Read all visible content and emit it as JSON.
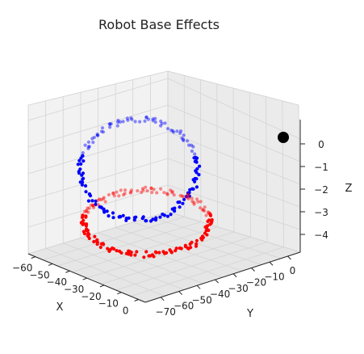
{
  "chart_data": {
    "type": "scatter",
    "projection": "3d",
    "title": "Robot Base Effects",
    "xlabel": "X",
    "ylabel": "Y",
    "zlabel": "Z",
    "xlim": [
      -65,
      5
    ],
    "ylim": [
      -80,
      5
    ],
    "zlim": [
      -4.8,
      0.6
    ],
    "x_ticks": [
      "−60",
      "−50",
      "−40",
      "−30",
      "−20",
      "−10",
      "0"
    ],
    "y_ticks": [
      "−70",
      "−60",
      "−50",
      "−40",
      "−30",
      "−20",
      "−10",
      "0"
    ],
    "z_ticks": [
      "0",
      "−1",
      "−2",
      "−3",
      "−4"
    ],
    "grid": true,
    "series": [
      {
        "color": "#0000ff",
        "description": "upper ring of points, roughly a circle near z ≈ -2.2 to -3.5"
      },
      {
        "color": "#ff0000",
        "description": "lower ring of points, roughly a circle near z ≈ -3.5 to -4.5"
      },
      {
        "color": "#000000",
        "description": "single large marker at the origin",
        "points": [
          [
            0,
            0,
            0
          ]
        ]
      }
    ]
  }
}
